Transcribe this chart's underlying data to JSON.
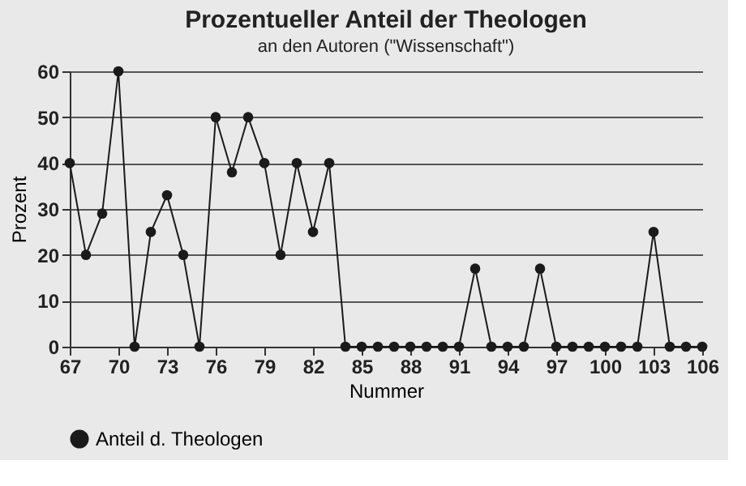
{
  "chart_data": {
    "type": "line",
    "title": "Prozentueller Anteil der Theologen",
    "subtitle": "an den Autoren (\"Wissenschaft\")",
    "xlabel": "Nummer",
    "ylabel": "Prozent",
    "x": [
      67,
      68,
      69,
      70,
      71,
      72,
      73,
      74,
      75,
      76,
      77,
      78,
      79,
      80,
      81,
      82,
      83,
      84,
      85,
      86,
      87,
      88,
      89,
      90,
      91,
      92,
      93,
      94,
      95,
      96,
      97,
      98,
      99,
      100,
      101,
      102,
      103,
      104,
      105,
      106
    ],
    "series": [
      {
        "name": "Anteil d. Theologen",
        "color": "#1a1a1a",
        "values": [
          40,
          20,
          29,
          60,
          0,
          25,
          33,
          20,
          0,
          50,
          38,
          50,
          40,
          20,
          40,
          25,
          40,
          0,
          0,
          0,
          0,
          0,
          0,
          0,
          0,
          17,
          0,
          0,
          0,
          17,
          0,
          0,
          0,
          0,
          0,
          0,
          25,
          0,
          0,
          0
        ]
      }
    ],
    "xlim": [
      67,
      106
    ],
    "xticks": [
      67,
      70,
      73,
      76,
      79,
      82,
      85,
      88,
      91,
      94,
      97,
      100,
      103,
      106
    ],
    "ylim": [
      0,
      60
    ],
    "yticks": [
      0,
      10,
      20,
      30,
      40,
      50,
      60
    ],
    "grid": "y",
    "legend": "bottom",
    "marker": "circle",
    "line_style": "solid"
  }
}
